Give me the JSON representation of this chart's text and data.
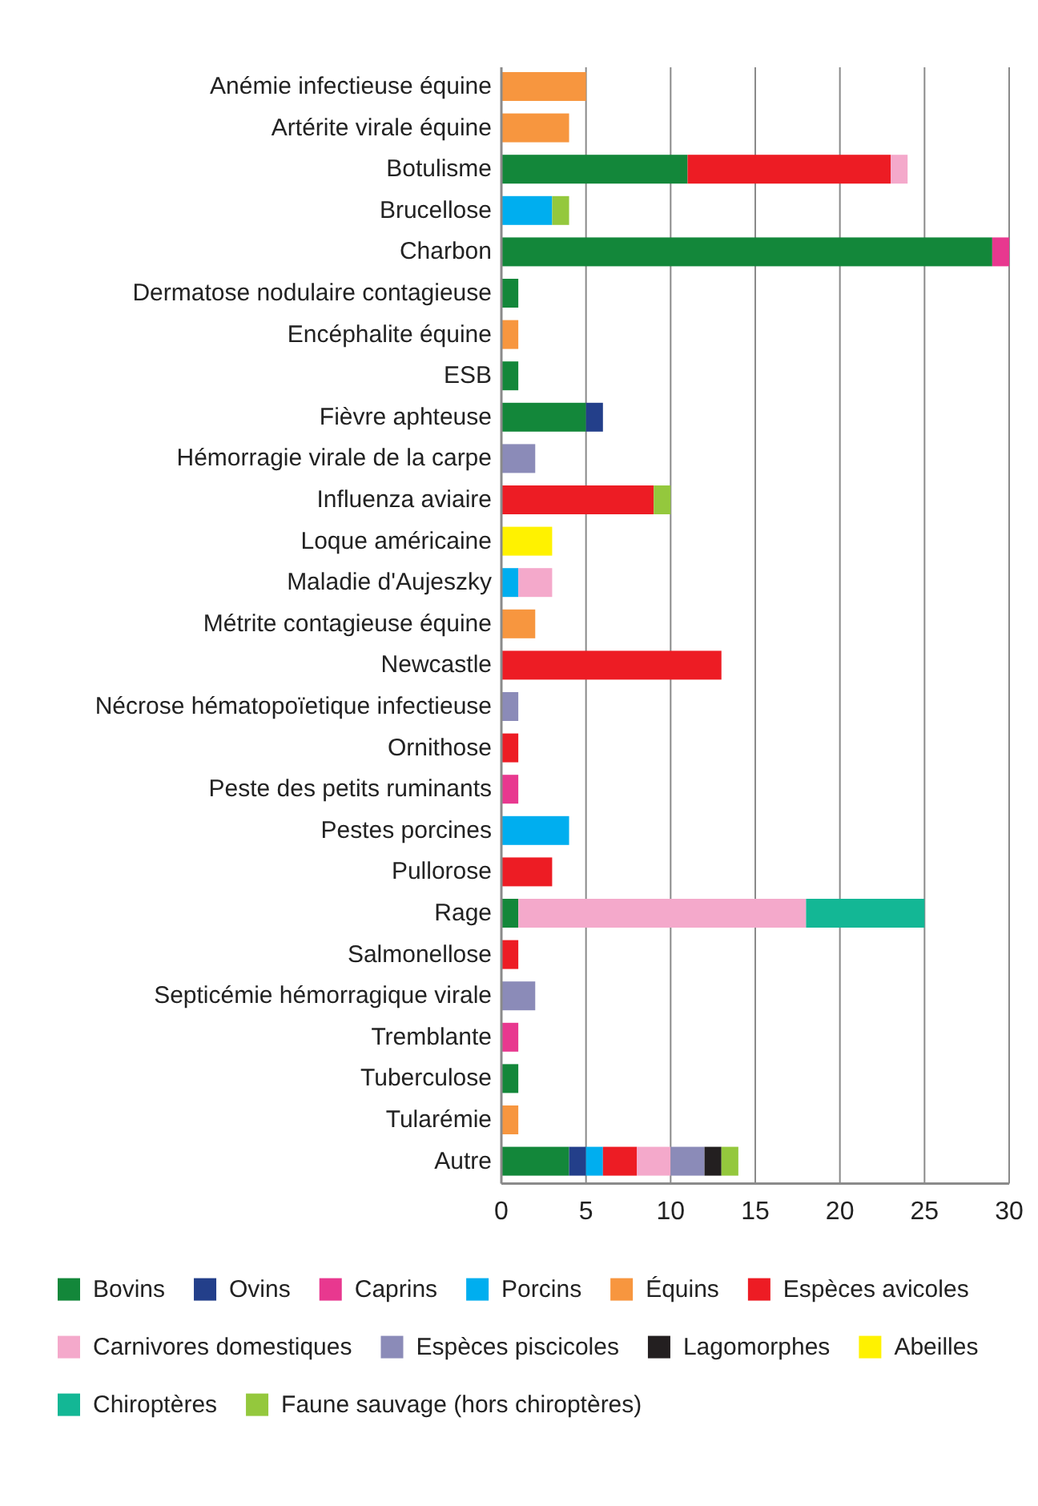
{
  "chart_data": {
    "type": "bar",
    "orientation": "horizontal",
    "stacked": true,
    "categories": [
      "Anémie infectieuse équine",
      "Artérite virale équine",
      "Botulisme",
      "Brucellose",
      "Charbon",
      "Dermatose nodulaire contagieuse",
      "Encéphalite équine",
      "ESB",
      "Fièvre aphteuse",
      "Hémorragie virale de la carpe",
      "Influenza aviaire",
      "Loque américaine",
      "Maladie d'Aujeszky",
      "Métrite contagieuse équine",
      "Newcastle",
      "Nécrose hématopoïetique infectieuse",
      "Ornithose",
      "Peste des petits ruminants",
      "Pestes porcines",
      "Pullorose",
      "Rage",
      "Salmonellose",
      "Septicémie hémorragique virale",
      "Tremblante",
      "Tuberculose",
      "Tularémie",
      "Autre"
    ],
    "series": [
      {
        "name": "Bovins",
        "color": "#13873a",
        "values": [
          null,
          null,
          11,
          null,
          29,
          1,
          null,
          1,
          5,
          null,
          null,
          null,
          null,
          null,
          null,
          null,
          null,
          null,
          null,
          null,
          1,
          null,
          null,
          null,
          1,
          null,
          4
        ]
      },
      {
        "name": "Ovins",
        "color": "#233f8a",
        "values": [
          null,
          null,
          null,
          null,
          null,
          null,
          null,
          null,
          1,
          null,
          null,
          null,
          null,
          null,
          null,
          null,
          null,
          null,
          null,
          null,
          null,
          null,
          null,
          null,
          null,
          null,
          1
        ]
      },
      {
        "name": "Caprins",
        "color": "#e8388f",
        "values": [
          null,
          null,
          null,
          null,
          1,
          null,
          null,
          null,
          null,
          null,
          null,
          null,
          null,
          null,
          null,
          null,
          null,
          1,
          null,
          null,
          null,
          null,
          null,
          1,
          null,
          null,
          null
        ]
      },
      {
        "name": "Porcins",
        "color": "#00aeef",
        "values": [
          null,
          null,
          null,
          3,
          null,
          null,
          null,
          null,
          null,
          null,
          null,
          null,
          1,
          null,
          null,
          null,
          null,
          null,
          4,
          null,
          null,
          null,
          null,
          null,
          null,
          null,
          1
        ]
      },
      {
        "name": "Équins",
        "color": "#f7963f",
        "values": [
          5,
          4,
          null,
          null,
          null,
          null,
          1,
          null,
          null,
          null,
          null,
          null,
          null,
          2,
          null,
          null,
          null,
          null,
          null,
          null,
          null,
          null,
          null,
          null,
          null,
          1,
          null
        ]
      },
      {
        "name": "Espèces avicoles",
        "color": "#ed1c24",
        "values": [
          null,
          null,
          12,
          null,
          null,
          null,
          null,
          null,
          null,
          null,
          9,
          null,
          null,
          null,
          13,
          null,
          1,
          null,
          null,
          3,
          null,
          1,
          null,
          null,
          null,
          null,
          2
        ]
      },
      {
        "name": "Carnivores domestiques",
        "color": "#f4a9cb",
        "values": [
          null,
          null,
          1,
          null,
          null,
          null,
          null,
          null,
          null,
          null,
          null,
          null,
          2,
          null,
          null,
          null,
          null,
          null,
          null,
          null,
          17,
          null,
          null,
          null,
          null,
          null,
          2
        ]
      },
      {
        "name": "Espèces piscicoles",
        "color": "#8b8bb8",
        "values": [
          null,
          null,
          null,
          null,
          null,
          null,
          null,
          null,
          null,
          2,
          null,
          null,
          null,
          null,
          null,
          1,
          null,
          null,
          null,
          null,
          null,
          null,
          2,
          null,
          null,
          null,
          2
        ]
      },
      {
        "name": "Lagomorphes",
        "color": "#231f20",
        "values": [
          null,
          null,
          null,
          null,
          null,
          null,
          null,
          null,
          null,
          null,
          null,
          null,
          null,
          null,
          null,
          null,
          null,
          null,
          null,
          null,
          null,
          null,
          null,
          null,
          null,
          null,
          1
        ]
      },
      {
        "name": "Abeilles",
        "color": "#fff200",
        "values": [
          null,
          null,
          null,
          null,
          null,
          null,
          null,
          null,
          null,
          null,
          null,
          3,
          null,
          null,
          null,
          null,
          null,
          null,
          null,
          null,
          null,
          null,
          null,
          null,
          null,
          null,
          null
        ]
      },
      {
        "name": "Chiroptères",
        "color": "#13b795",
        "values": [
          null,
          null,
          null,
          null,
          null,
          null,
          null,
          null,
          null,
          null,
          null,
          null,
          null,
          null,
          null,
          null,
          null,
          null,
          null,
          null,
          7,
          null,
          null,
          null,
          null,
          null,
          null
        ]
      },
      {
        "name": "Faune sauvage (hors chiroptères)",
        "color": "#94c83d",
        "values": [
          null,
          null,
          null,
          1,
          null,
          null,
          null,
          null,
          null,
          null,
          1,
          null,
          null,
          null,
          null,
          null,
          null,
          null,
          null,
          null,
          null,
          null,
          null,
          null,
          null,
          null,
          1
        ]
      }
    ],
    "xlim": [
      0,
      30
    ],
    "xticks": [
      0,
      5,
      10,
      15,
      20,
      25,
      30
    ],
    "grid": "x",
    "legend": "bottom"
  }
}
